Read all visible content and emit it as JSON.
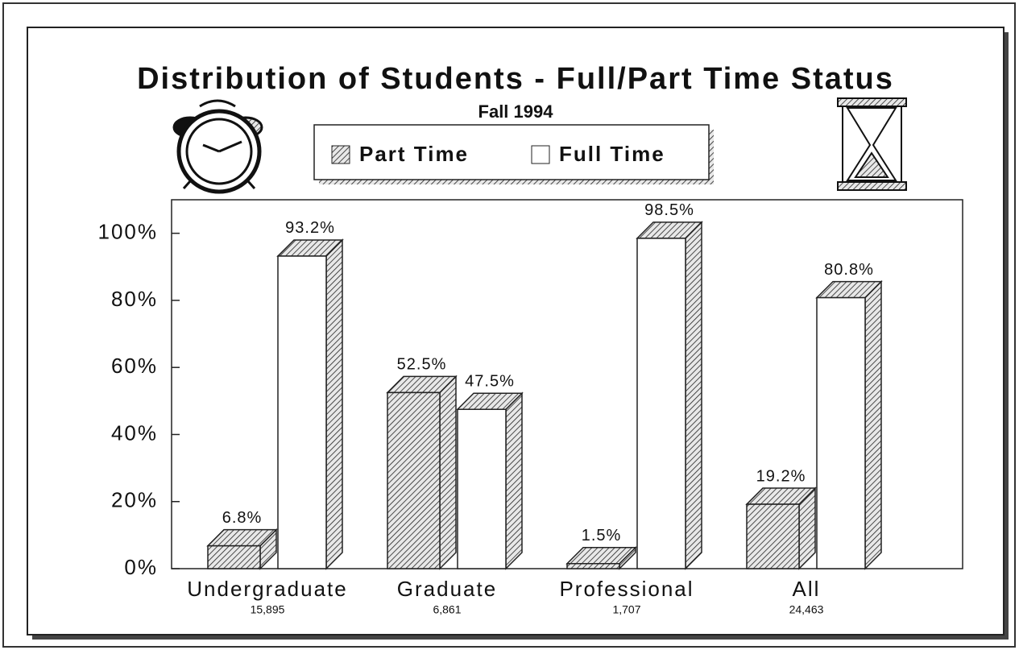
{
  "chart_data": {
    "type": "bar3d",
    "title": "Distribution of Students - Full/Part Time Status",
    "subtitle": "Fall 1994",
    "categories": [
      "Undergraduate",
      "Graduate",
      "Professional",
      "All"
    ],
    "category_counts": [
      "15,895",
      "6,861",
      "1,707",
      "24,463"
    ],
    "series": [
      {
        "name": "Part Time",
        "color": "hatched",
        "values": [
          6.8,
          52.5,
          1.5,
          19.2
        ],
        "value_labels": [
          "6.8%",
          "52.5%",
          "1.5%",
          "19.2%"
        ]
      },
      {
        "name": "Full Time",
        "color": "#ffffff",
        "values": [
          93.2,
          47.5,
          98.5,
          80.8
        ],
        "value_labels": [
          "93.2%",
          "47.5%",
          "98.5%",
          "80.8%"
        ]
      }
    ],
    "ylim": [
      0,
      110
    ],
    "yticks": [
      {
        "value": 0,
        "label": "0%"
      },
      {
        "value": 20,
        "label": "20%"
      },
      {
        "value": 40,
        "label": "40%"
      },
      {
        "value": 60,
        "label": "60%"
      },
      {
        "value": 80,
        "label": "80%"
      },
      {
        "value": 100,
        "label": "100%"
      }
    ]
  }
}
